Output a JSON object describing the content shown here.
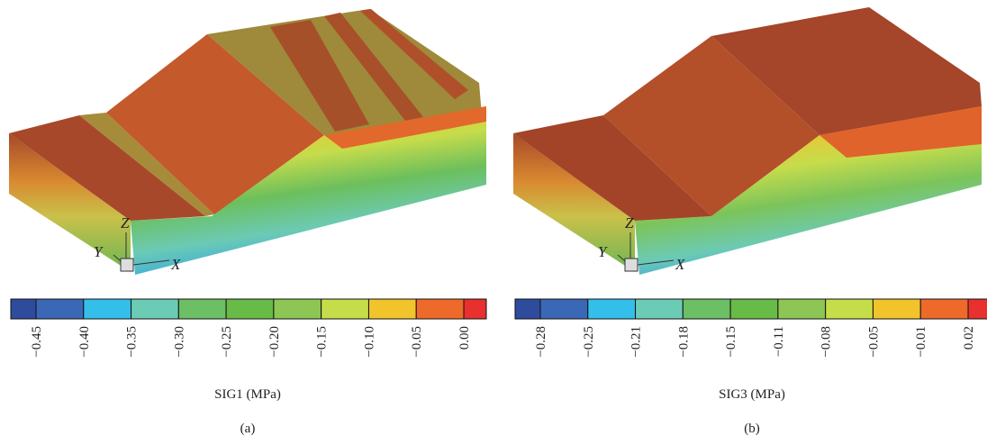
{
  "panels": [
    {
      "label": "(a)",
      "axes": {
        "z": "Z",
        "y": "Y",
        "x": "X"
      },
      "colorbar": {
        "title": "SIG1 (MPa)",
        "ticks": [
          "−0.45",
          "−0.40",
          "−0.35",
          "−0.30",
          "−0.25",
          "−0.20",
          "−0.15",
          "−0.10",
          "−0.05",
          "0.00"
        ],
        "colors": [
          "#2f4b9c",
          "#3b68b6",
          "#33bfea",
          "#6ccbb5",
          "#6cbf64",
          "#68bb47",
          "#8dc654",
          "#c6dd4a",
          "#f2c42b",
          "#ee6a2b",
          "#e8302f"
        ]
      }
    },
    {
      "label": "(b)",
      "axes": {
        "z": "Z",
        "y": "Y",
        "x": "X"
      },
      "colorbar": {
        "title": "SIG3 (MPa)",
        "ticks": [
          "−0.28",
          "−0.25",
          "−0.21",
          "−0.18",
          "−0.15",
          "−0.11",
          "−0.08",
          "−0.05",
          "−0.01",
          "0.02"
        ],
        "colors": [
          "#2f4b9c",
          "#3b68b6",
          "#33bfea",
          "#6ccbb5",
          "#6cbf64",
          "#68bb47",
          "#8dc654",
          "#c6dd4a",
          "#f2c42b",
          "#ee6a2b",
          "#e8302f"
        ]
      }
    }
  ]
}
